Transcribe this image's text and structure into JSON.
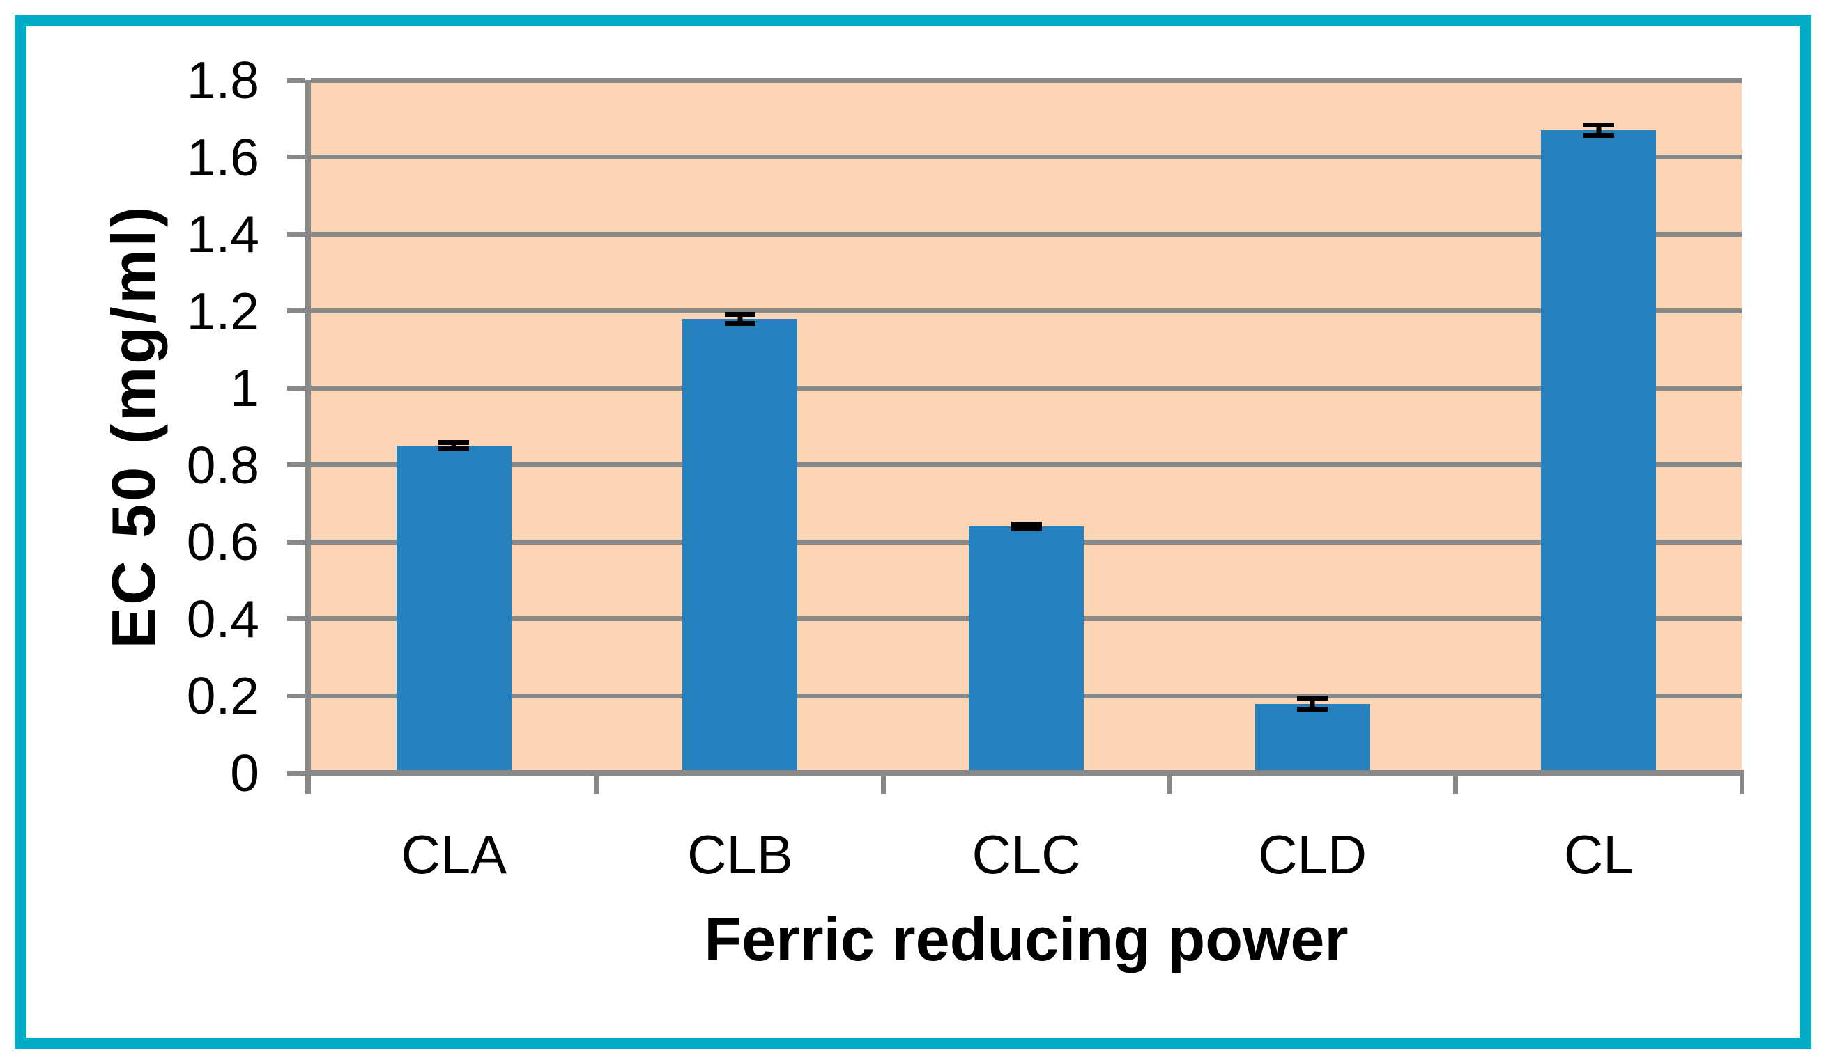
{
  "colors": {
    "frame_border": "#00abc4",
    "plot_background": "#fcd5b4",
    "bar_fill": "#2581be",
    "gridline": "#888888",
    "error_bar": "#000000",
    "text": "#000000",
    "page_background": "#ffffff"
  },
  "chart_data": {
    "type": "bar",
    "title": "",
    "categories": [
      "CLA",
      "CLB",
      "CLC",
      "CLD",
      "CL"
    ],
    "values": [
      0.85,
      1.18,
      0.64,
      0.18,
      1.67
    ],
    "errors": [
      0.008,
      0.012,
      0.006,
      0.015,
      0.013
    ],
    "xlabel": "Ferric reducing power",
    "ylabel": "EC 50 (mg/ml)",
    "ylim": [
      0,
      1.8
    ],
    "ytick_step": 0.2,
    "ytick_labels": [
      "0",
      "0.2",
      "0.4",
      "0.6",
      "0.8",
      "1",
      "1.2",
      "1.4",
      "1.6",
      "1.8"
    ],
    "grid": "horizontal-only",
    "legend": "none",
    "series": [
      {
        "name": "EC 50",
        "values": [
          0.85,
          1.18,
          0.64,
          0.18,
          1.67
        ]
      }
    ]
  }
}
